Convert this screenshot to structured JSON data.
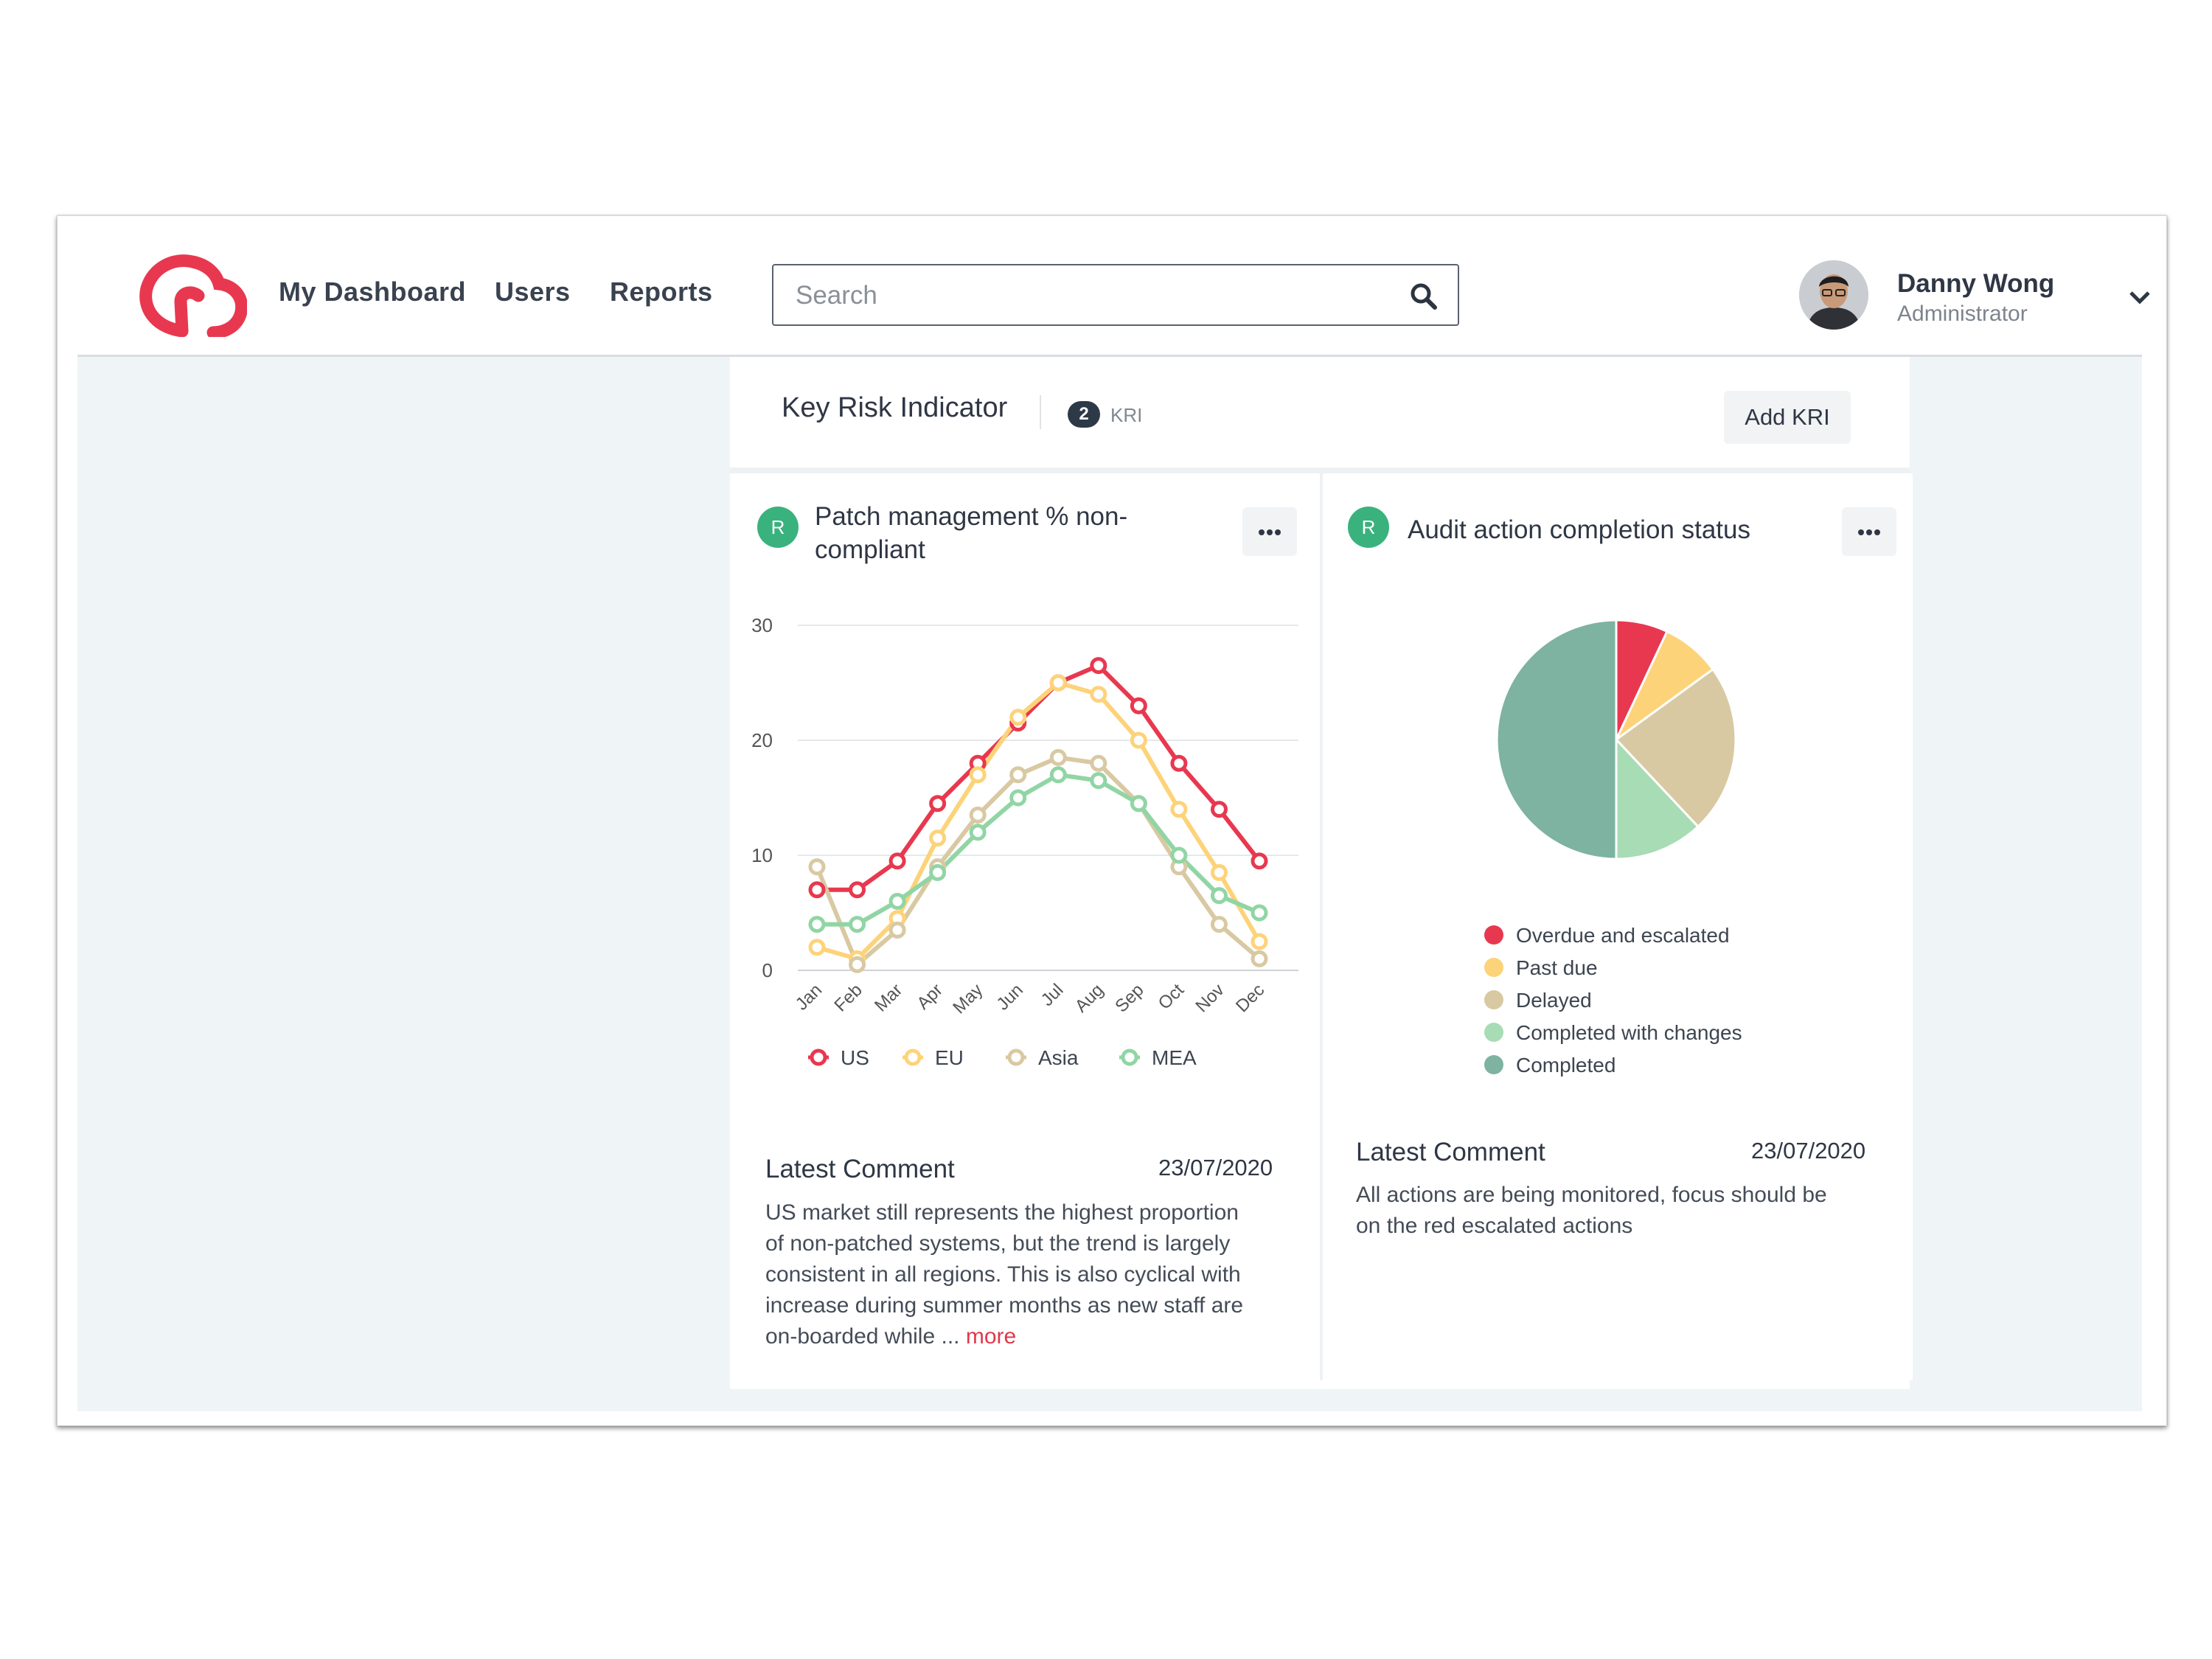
{
  "header": {
    "nav": [
      "My Dashboard",
      "Users",
      "Reports"
    ],
    "search_placeholder": "Search",
    "user": {
      "name": "Danny Wong",
      "role": "Administrator"
    }
  },
  "kri": {
    "title": "Key Risk Indicator",
    "count": "2",
    "count_unit": "KRI",
    "add_button": "Add KRI"
  },
  "cards": [
    {
      "status": "R",
      "title_line1": "Patch management % non-",
      "title_line2": "compliant",
      "comment_label": "Latest Comment",
      "comment_date": "23/07/2020",
      "comment_lines": [
        "US market still represents the highest proportion",
        "of non-patched systems, but the trend is largely",
        "consistent in all regions. This is also cyclical with",
        "increase during summer months as new staff are",
        "on-boarded while ... "
      ],
      "more_link": "more"
    },
    {
      "status": "R",
      "title": "Audit action completion status",
      "comment_label": "Latest Comment",
      "comment_date": "23/07/2020",
      "comment_lines": [
        "All actions are being monitored, focus should be",
        "on the red escalated actions"
      ]
    }
  ],
  "chart_data": [
    {
      "type": "line",
      "categories": [
        "Jan",
        "Feb",
        "Mar",
        "Apr",
        "May",
        "Jun",
        "Jul",
        "Aug",
        "Sep",
        "Oct",
        "Nov",
        "Dec"
      ],
      "ylim": [
        0,
        30
      ],
      "yticks": [
        0,
        10,
        20,
        30
      ],
      "grid": true,
      "legend_position": "bottom",
      "series": [
        {
          "name": "US",
          "color": "#e8384f",
          "values": [
            7,
            7,
            9.5,
            14.5,
            18,
            21.5,
            25,
            26.5,
            23,
            18,
            14,
            9.5
          ]
        },
        {
          "name": "EU",
          "color": "#fdd37a",
          "values": [
            2,
            1,
            4.5,
            11.5,
            17,
            22,
            25,
            24,
            20,
            14,
            8.5,
            2.5
          ]
        },
        {
          "name": "Asia",
          "color": "#d9c9a3",
          "values": [
            9,
            0.5,
            3.5,
            9,
            13.5,
            17,
            18.5,
            18,
            14.5,
            9,
            4,
            1
          ]
        },
        {
          "name": "MEA",
          "color": "#91d5a5",
          "values": [
            4,
            4,
            6,
            8.5,
            12,
            15,
            17,
            16.5,
            14.5,
            10,
            6.5,
            5
          ]
        }
      ]
    },
    {
      "type": "pie",
      "legend_position": "bottom",
      "slices": [
        {
          "label": "Overdue and escalated",
          "value": 7,
          "color": "#e8384f"
        },
        {
          "label": "Past due",
          "value": 8,
          "color": "#fdd37a"
        },
        {
          "label": "Delayed",
          "value": 23,
          "color": "#d9c9a3"
        },
        {
          "label": "Completed with changes",
          "value": 12,
          "color": "#a8dcb4"
        },
        {
          "label": "Completed",
          "value": 50,
          "color": "#7eb2a1"
        }
      ]
    }
  ]
}
